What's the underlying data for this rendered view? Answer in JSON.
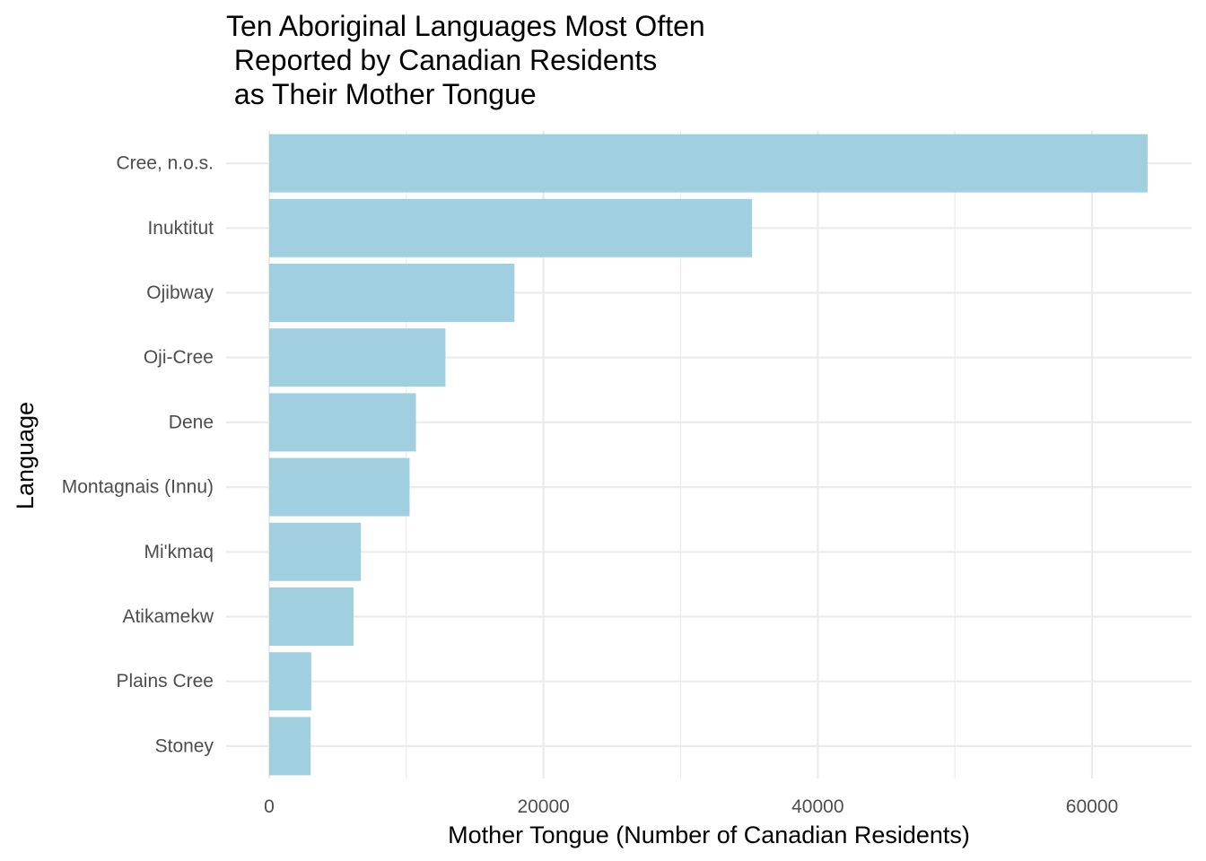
{
  "chart_data": {
    "type": "bar",
    "orientation": "horizontal",
    "title": "Ten Aboriginal Languages Most Often\n Reported by Canadian Residents\n as Their Mother Tongue",
    "xlabel": "Mother Tongue (Number of Canadian Residents)",
    "ylabel": "Language",
    "categories": [
      "Cree, n.o.s.",
      "Inuktitut",
      "Ojibway",
      "Oji-Cree",
      "Dene",
      "Montagnais (Innu)",
      "Mi'kmaq",
      "Atikamekw",
      "Plains Cree",
      "Stoney"
    ],
    "values": [
      64050,
      35210,
      17885,
      12855,
      10700,
      10235,
      6690,
      6150,
      3065,
      3025
    ],
    "xlim": [
      0,
      66500
    ],
    "xticks": [
      0,
      20000,
      40000,
      60000
    ],
    "bar_color": "#a0d0e0",
    "grid_color": "#ebebeb",
    "grid": true,
    "legend": "none"
  }
}
